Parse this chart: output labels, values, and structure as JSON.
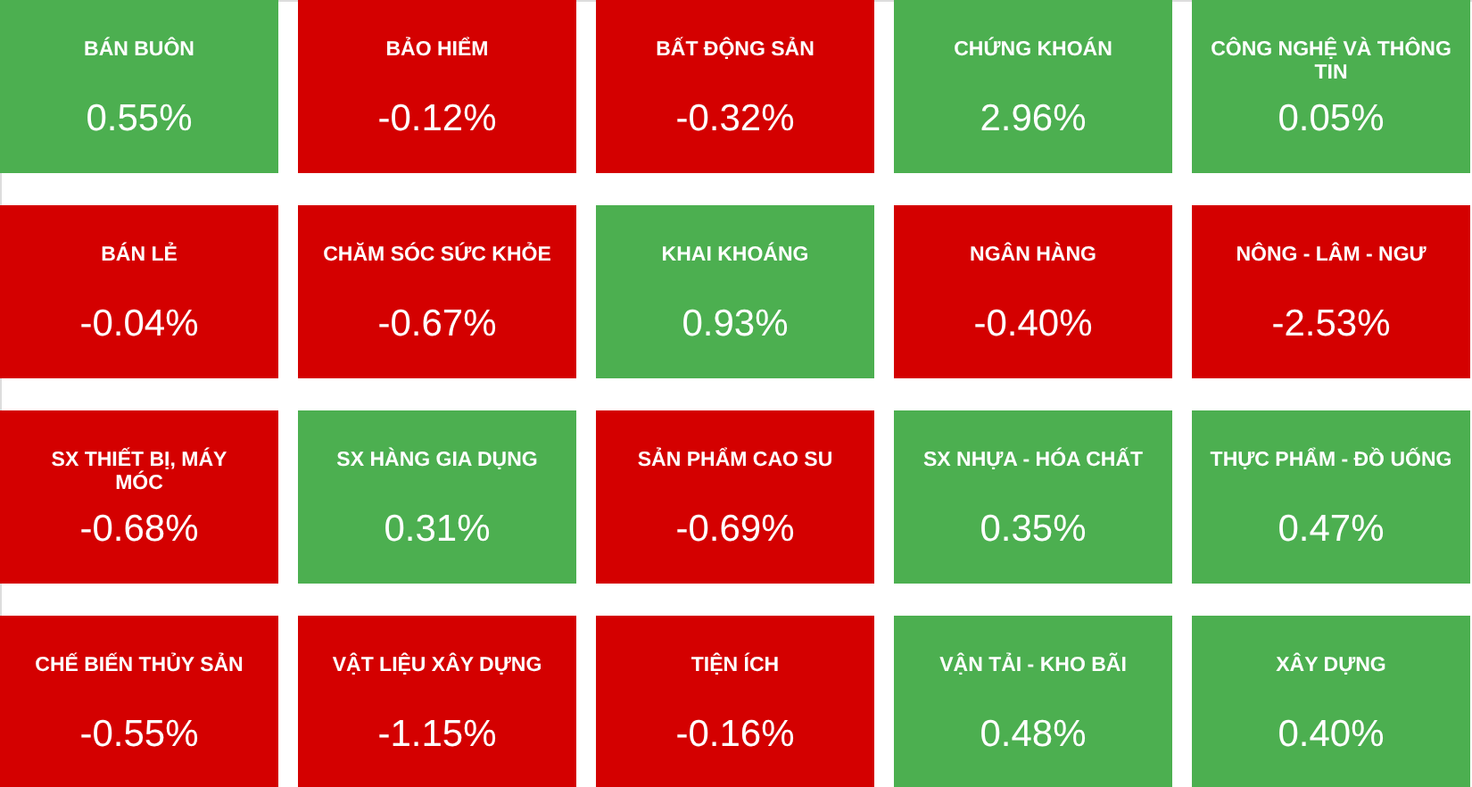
{
  "chart_data": {
    "type": "other",
    "categories": [
      "BÁN BUÔN",
      "BẢO HIỂM",
      "BẤT ĐỘNG SẢN",
      "CHỨNG KHOÁN",
      "CÔNG NGHỆ VÀ THÔNG TIN",
      "BÁN LẺ",
      "CHĂM SÓC SỨC KHỎE",
      "KHAI KHOÁNG",
      "NGÂN HÀNG",
      "NÔNG - LÂM - NGƯ",
      "SX THIẾT BỊ, MÁY MÓC",
      "SX HÀNG GIA DỤNG",
      "SẢN PHẨM CAO SU",
      "SX NHỰA - HÓA CHẤT",
      "THỰC PHẨM - ĐỒ UỐNG",
      "CHẾ BIẾN THỦY SẢN",
      "VẬT LIỆU XÂY DỰNG",
      "TIỆN ÍCH",
      "VẬN TẢI - KHO BÃI",
      "XÂY DỰNG"
    ],
    "values": [
      0.55,
      -0.12,
      -0.32,
      2.96,
      0.05,
      -0.04,
      -0.67,
      0.93,
      -0.4,
      -2.53,
      -0.68,
      0.31,
      -0.69,
      0.35,
      0.47,
      -0.55,
      -1.15,
      -0.16,
      0.48,
      0.4
    ],
    "value_labels": [
      "0.55%",
      "-0.12%",
      "-0.32%",
      "2.96%",
      "0.05%",
      "-0.04%",
      "-0.67%",
      "0.93%",
      "-0.40%",
      "-2.53%",
      "-0.68%",
      "0.31%",
      "-0.69%",
      "0.35%",
      "0.47%",
      "-0.55%",
      "-1.15%",
      "-0.16%",
      "0.48%",
      "0.40%"
    ],
    "colors": [
      "#4caf50",
      "#d40000",
      "#d40000",
      "#4caf50",
      "#4caf50",
      "#d40000",
      "#d40000",
      "#4caf50",
      "#d40000",
      "#d40000",
      "#d40000",
      "#4caf50",
      "#d40000",
      "#4caf50",
      "#4caf50",
      "#d40000",
      "#d40000",
      "#d40000",
      "#4caf50",
      "#4caf50"
    ]
  }
}
